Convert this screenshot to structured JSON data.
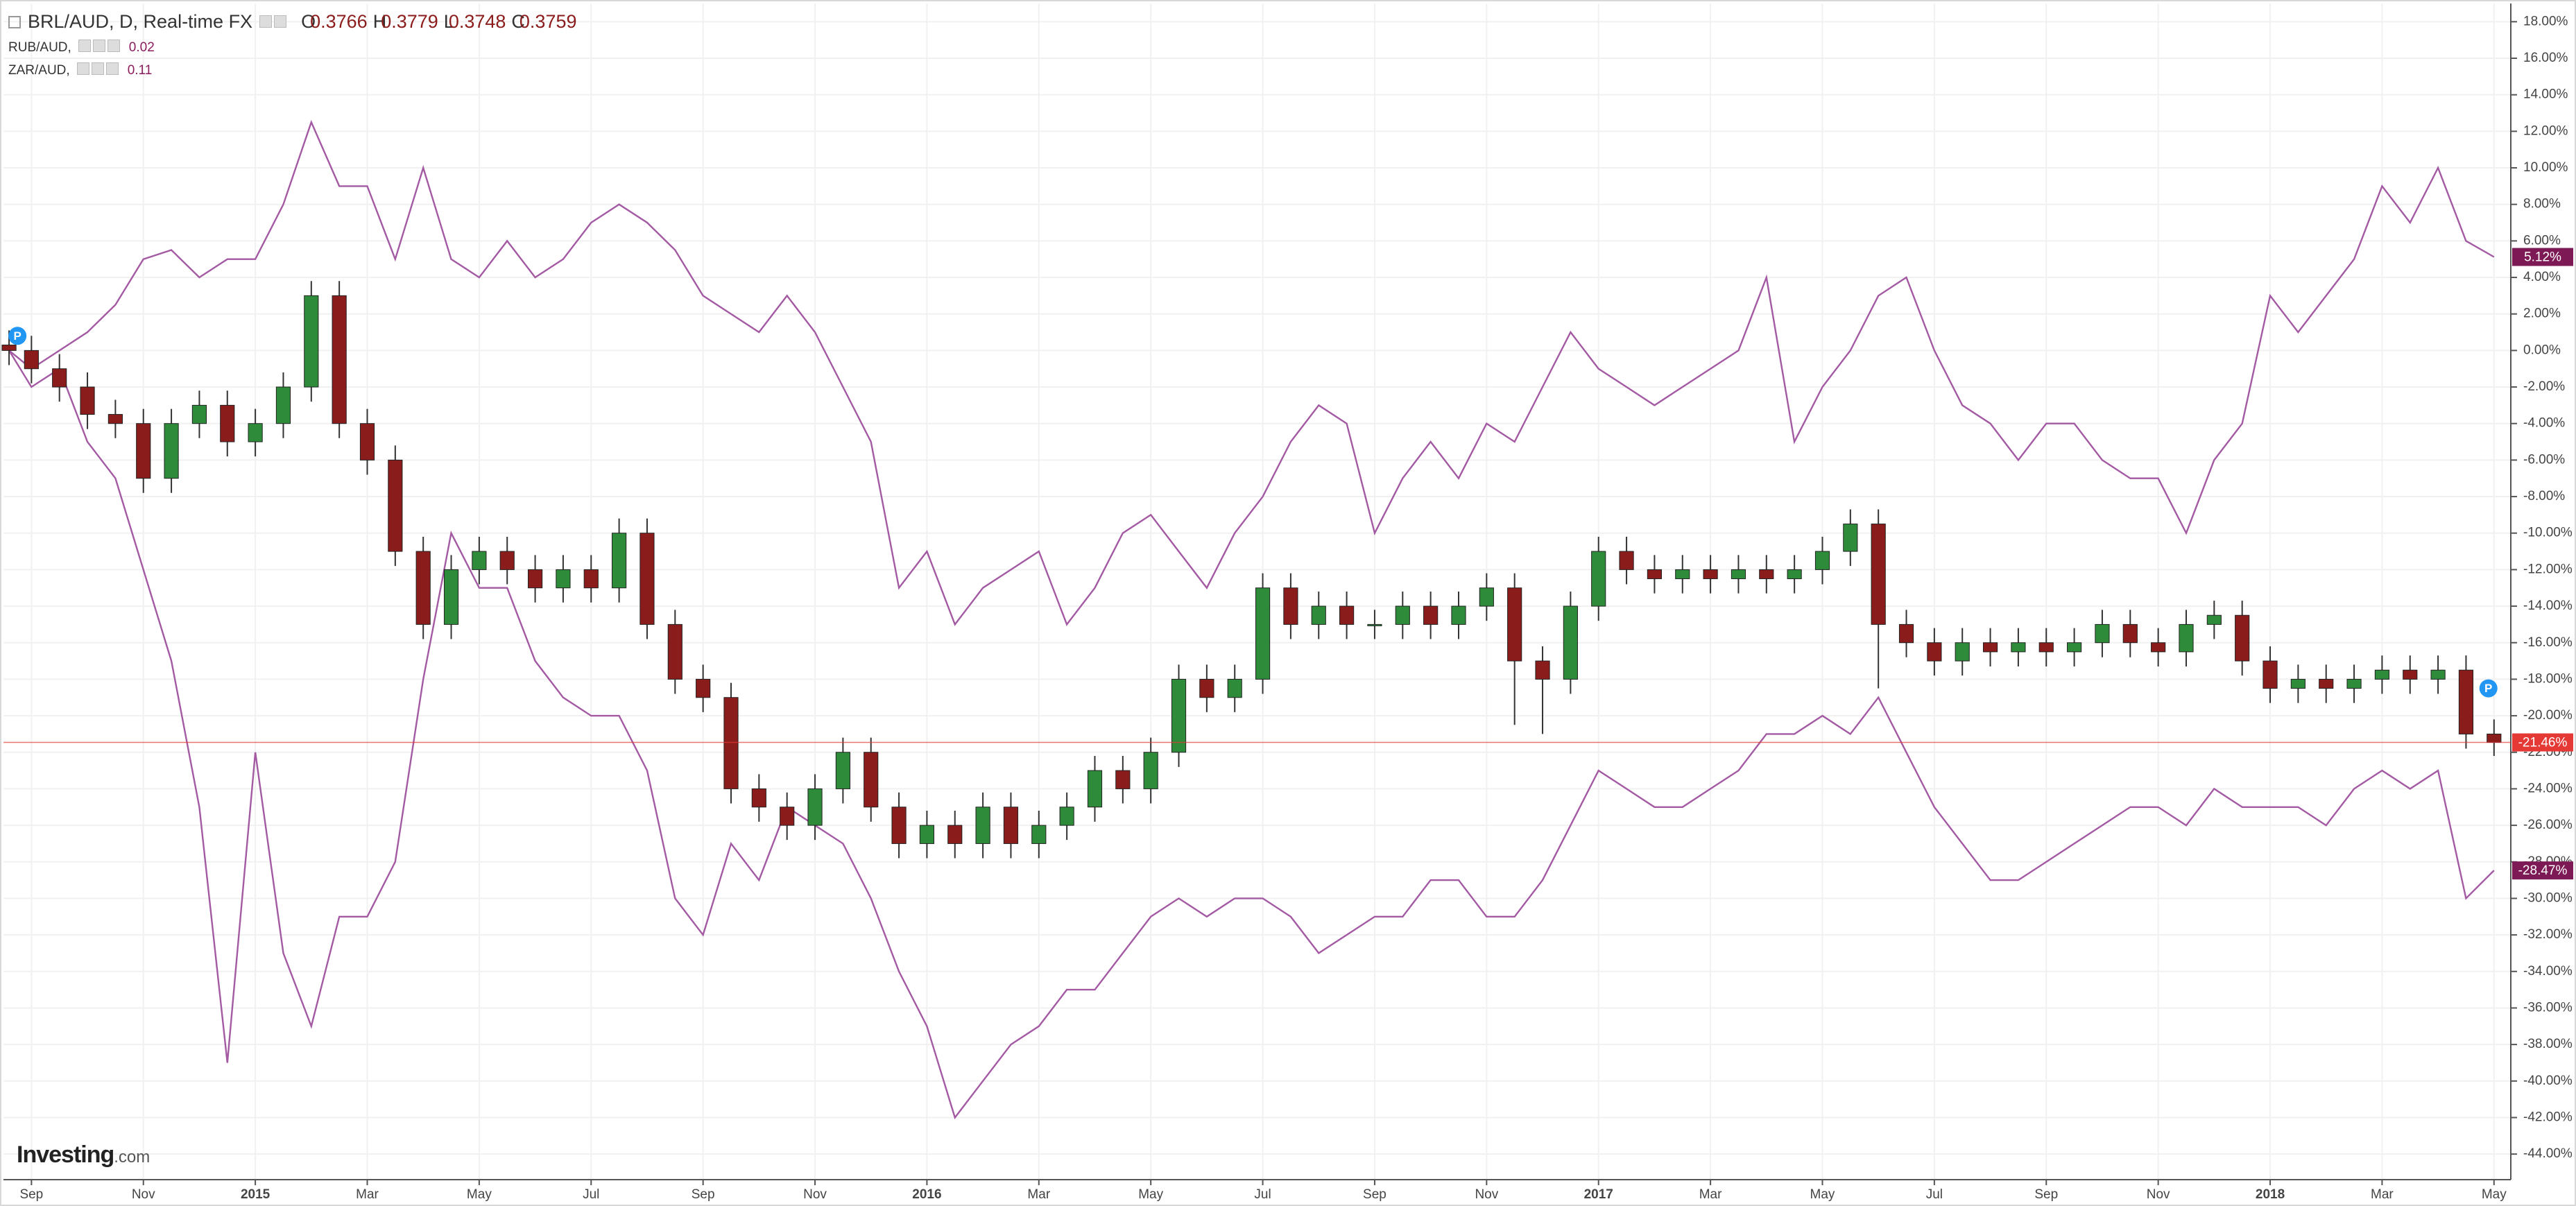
{
  "chart_data": {
    "type": "candlestick",
    "title": "BRL/AUD, D, Real-time FX",
    "ohlc_legend": [
      {
        "label": "O",
        "value": 0.3766
      },
      {
        "label": "H",
        "value": 0.3779
      },
      {
        "label": "L",
        "value": 0.3748
      },
      {
        "label": "C",
        "value": 0.3759
      }
    ],
    "x": [
      -0.4,
      0,
      0.5,
      1,
      1.5,
      2,
      2.5,
      3,
      3.5,
      4,
      4.5,
      5,
      5.5,
      6,
      6.5,
      7,
      7.5,
      8,
      8.5,
      9,
      9.5,
      10,
      10.5,
      11,
      11.5,
      12,
      12.5,
      13,
      13.5,
      14,
      14.5,
      15,
      15.5,
      16,
      16.5,
      17,
      17.5,
      18,
      18.5,
      19,
      19.5,
      20,
      20.5,
      21,
      21.5,
      22,
      22.5,
      23,
      23.5,
      24,
      24.5,
      25,
      25.5,
      26,
      26.5,
      27,
      27.5,
      28,
      28.5,
      29,
      29.5,
      30,
      30.5,
      31,
      31.5,
      32,
      32.5,
      33,
      33.5,
      34,
      34.5,
      35,
      35.5,
      36,
      36.5,
      37,
      37.5,
      38,
      38.5,
      39,
      39.5,
      40,
      40.5,
      41,
      41.5,
      42,
      42.5,
      43,
      43.5,
      44
    ],
    "open": [
      0.3,
      0,
      -1,
      -2,
      -3.5,
      -4,
      -7,
      -4,
      -3,
      -5,
      -4,
      -2,
      3,
      -4,
      -6,
      -11,
      -15,
      -12,
      -11,
      -12,
      -13,
      -12,
      -13,
      -10,
      -15,
      -18,
      -19,
      -24,
      -25,
      -26,
      -24,
      -22,
      -25,
      -27,
      -26,
      -27,
      -25,
      -27,
      -26,
      -25,
      -23,
      -24,
      -22,
      -18,
      -19,
      -18,
      -13,
      -15,
      -14,
      -15,
      -15,
      -14,
      -15,
      -14,
      -13,
      -17,
      -18,
      -14,
      -11,
      -12,
      -12.5,
      -12,
      -12.5,
      -12,
      -12.5,
      -12,
      -11,
      -9.5,
      -15,
      -16,
      -17,
      -16,
      -16.5,
      -16,
      -16.5,
      -16,
      -15,
      -16,
      -16.5,
      -15,
      -14.5,
      -17,
      -18.5,
      -18,
      -18.5,
      -18,
      -17.5,
      -18,
      -17.5,
      -21
    ],
    "high": [
      1.1,
      0.8,
      -0.2,
      -1.2,
      -2.7,
      -3.2,
      -3.2,
      -2.2,
      -2.2,
      -3.2,
      -1.2,
      3.8,
      3.8,
      -3.2,
      -5.2,
      -10.2,
      -11.2,
      -10.2,
      -10.2,
      -11.2,
      -11.2,
      -11.2,
      -9.2,
      -9.2,
      -14.2,
      -17.2,
      -18.2,
      -23.2,
      -24.2,
      -23.2,
      -21.2,
      -21.2,
      -24.2,
      -25.2,
      -25.2,
      -24.2,
      -24.2,
      -25.2,
      -24.2,
      -22.2,
      -22.2,
      -21.2,
      -17.2,
      -17.2,
      -17.2,
      -12.2,
      -12.2,
      -13.2,
      -13.2,
      -14.2,
      -13.2,
      -13.2,
      -13.2,
      -12.2,
      -12.2,
      -16.2,
      -13.2,
      -10.2,
      -10.2,
      -11.2,
      -11.2,
      -11.2,
      -11.2,
      -11.2,
      -11.2,
      -10.2,
      -8.7,
      -8.7,
      -14.2,
      -15.2,
      -15.2,
      -15.2,
      -15.2,
      -15.2,
      -15.2,
      -14.2,
      -14.2,
      -15.2,
      -14.2,
      -13.7,
      -13.7,
      -16.2,
      -17.2,
      -17.2,
      -17.2,
      -16.7,
      -16.7,
      -16.7,
      -16.7,
      -20.2
    ],
    "low": [
      -0.8,
      -1.8,
      -2.8,
      -4.3,
      -4.8,
      -7.8,
      -7.8,
      -4.8,
      -5.8,
      -5.8,
      -4.8,
      -2.8,
      -4.8,
      -6.8,
      -11.8,
      -15.8,
      -15.8,
      -12.8,
      -12.8,
      -13.8,
      -13.8,
      -13.8,
      -13.8,
      -15.8,
      -18.8,
      -19.8,
      -24.8,
      -25.8,
      -26.8,
      -26.8,
      -24.8,
      -25.8,
      -27.8,
      -27.8,
      -27.8,
      -27.8,
      -27.8,
      -27.8,
      -26.8,
      -25.8,
      -24.8,
      -24.8,
      -22.8,
      -19.8,
      -19.8,
      -18.8,
      -15.8,
      -15.8,
      -15.8,
      -15.8,
      -15.8,
      -15.8,
      -15.8,
      -14.8,
      -20.5,
      -21,
      -18.8,
      -14.8,
      -12.8,
      -13.3,
      -13.3,
      -13.3,
      -13.3,
      -13.3,
      -13.3,
      -12.8,
      -11.8,
      -18.5,
      -16.8,
      -17.8,
      -17.8,
      -17.3,
      -17.3,
      -17.3,
      -17.3,
      -16.8,
      -16.8,
      -17.3,
      -17.3,
      -15.8,
      -17.8,
      -19.3,
      -19.3,
      -19.3,
      -19.3,
      -18.8,
      -18.8,
      -18.8,
      -21.8,
      -22.2
    ],
    "close": [
      0,
      -1,
      -2,
      -3.5,
      -4,
      -7,
      -4,
      -3,
      -5,
      -4,
      -2,
      3,
      -4,
      -6,
      -11,
      -15,
      -12,
      -11,
      -12,
      -13,
      -12,
      -13,
      -10,
      -15,
      -18,
      -19,
      -24,
      -25,
      -26,
      -24,
      -22,
      -25,
      -27,
      -26,
      -27,
      -25,
      -27,
      -26,
      -25,
      -23,
      -24,
      -22,
      -18,
      -19,
      -18,
      -13,
      -15,
      -14,
      -15,
      -15,
      -14,
      -15,
      -14,
      -13,
      -17,
      -18,
      -14,
      -11,
      -12,
      -12.5,
      -12,
      -12.5,
      -12,
      -12.5,
      -12,
      -11,
      -9.5,
      -15,
      -16,
      -17,
      -16,
      -16.5,
      -16,
      -16.5,
      -16,
      -15,
      -16,
      -16.5,
      -15,
      -14.5,
      -17,
      -18.5,
      -18,
      -18.5,
      -18,
      -17.5,
      -18,
      -17.5,
      -21,
      -21.46
    ],
    "up_color": "#2e8b3a",
    "down_color": "#8b1c1c",
    "last_label": "-21.46%",
    "price_line_color": "#e53935",
    "compare": [
      {
        "name": "RUB/AUD,",
        "legend_value": 0.02,
        "color": "#a35aa3",
        "badge_color": "#7d1a55",
        "last_label": "-28.47%",
        "values": [
          0,
          -2,
          -1,
          -5,
          -7,
          -12,
          -17,
          -25,
          -39,
          -22,
          -33,
          -37,
          -31,
          -31,
          -28,
          -18,
          -10,
          -13,
          -13,
          -17,
          -19,
          -20,
          -20,
          -23,
          -30,
          -32,
          -27,
          -29,
          -25,
          -26,
          -27,
          -30,
          -34,
          -37,
          -42,
          -40,
          -38,
          -37,
          -35,
          -35,
          -33,
          -31,
          -30,
          -31,
          -30,
          -30,
          -31,
          -33,
          -32,
          -31,
          -31,
          -29,
          -29,
          -31,
          -31,
          -29,
          -26,
          -23,
          -24,
          -25,
          -25,
          -24,
          -23,
          -21,
          -21,
          -20,
          -21,
          -19,
          -22,
          -25,
          -27,
          -29,
          -29,
          -28,
          -27,
          -26,
          -25,
          -25,
          -26,
          -24,
          -25,
          -25,
          -25,
          -26,
          -24,
          -23,
          -24,
          -23,
          -30,
          -28.47
        ]
      },
      {
        "name": "ZAR/AUD,",
        "legend_value": 0.11,
        "color": "#a35aa3",
        "badge_color": "#7d1a55",
        "last_label": "5.12%",
        "values": [
          0,
          -1,
          0,
          1,
          2.5,
          5,
          5.5,
          4,
          5,
          5,
          8,
          12.5,
          9,
          9,
          5,
          10,
          5,
          4,
          6,
          4,
          5,
          7,
          8,
          7,
          5.5,
          3,
          2,
          1,
          3,
          1,
          -2,
          -5,
          -13,
          -11,
          -15,
          -13,
          -12,
          -11,
          -15,
          -13,
          -10,
          -9,
          -11,
          -13,
          -10,
          -8,
          -5,
          -3,
          -4,
          -10,
          -7,
          -5,
          -7,
          -4,
          -5,
          -2,
          1,
          -1,
          -2,
          -3,
          -2,
          -1,
          0,
          4,
          -5,
          -2,
          0,
          3,
          4,
          0,
          -3,
          -4,
          -6,
          -4,
          -4,
          -6,
          -7,
          -7,
          -10,
          -6,
          -4,
          3,
          1,
          3,
          5,
          9,
          7,
          10,
          6,
          5.12
        ]
      }
    ],
    "markers": [
      {
        "x": -0.25,
        "y": 0.8,
        "label": "P"
      },
      {
        "x": 43.9,
        "y": -18.5,
        "label": "P"
      }
    ],
    "xlim": [
      -0.5,
      44.3
    ],
    "xticks": [
      {
        "value": 0,
        "label": "Sep"
      },
      {
        "value": 2,
        "label": "Nov"
      },
      {
        "value": 4,
        "label": "2015"
      },
      {
        "value": 6,
        "label": "Mar"
      },
      {
        "value": 8,
        "label": "May"
      },
      {
        "value": 10,
        "label": "Jul"
      },
      {
        "value": 12,
        "label": "Sep"
      },
      {
        "value": 14,
        "label": "Nov"
      },
      {
        "value": 16,
        "label": "2016"
      },
      {
        "value": 18,
        "label": "Mar"
      },
      {
        "value": 20,
        "label": "May"
      },
      {
        "value": 22,
        "label": "Jul"
      },
      {
        "value": 24,
        "label": "Sep"
      },
      {
        "value": 26,
        "label": "Nov"
      },
      {
        "value": 28,
        "label": "2017"
      },
      {
        "value": 30,
        "label": "Mar"
      },
      {
        "value": 32,
        "label": "May"
      },
      {
        "value": 34,
        "label": "Jul"
      },
      {
        "value": 36,
        "label": "Sep"
      },
      {
        "value": 38,
        "label": "Nov"
      },
      {
        "value": 40,
        "label": "2018"
      },
      {
        "value": 42,
        "label": "Mar"
      },
      {
        "value": 44,
        "label": "May"
      }
    ],
    "ylim": [
      -45.4,
      19
    ],
    "yticks": [
      {
        "value": 18,
        "label": "18.00%"
      },
      {
        "value": 16,
        "label": "16.00%"
      },
      {
        "value": 14,
        "label": "14.00%"
      },
      {
        "value": 12,
        "label": "12.00%"
      },
      {
        "value": 10,
        "label": "10.00%"
      },
      {
        "value": 8,
        "label": "8.00%"
      },
      {
        "value": 6,
        "label": "6.00%"
      },
      {
        "value": 4,
        "label": "4.00%"
      },
      {
        "value": 2,
        "label": "2.00%"
      },
      {
        "value": 0,
        "label": "0.00%"
      },
      {
        "value": -2,
        "label": "-2.00%"
      },
      {
        "value": -4,
        "label": "-4.00%"
      },
      {
        "value": -6,
        "label": "-6.00%"
      },
      {
        "value": -8,
        "label": "-8.00%"
      },
      {
        "value": -10,
        "label": "-10.00%"
      },
      {
        "value": -12,
        "label": "-12.00%"
      },
      {
        "value": -14,
        "label": "-14.00%"
      },
      {
        "value": -16,
        "label": "-16.00%"
      },
      {
        "value": -18,
        "label": "-18.00%"
      },
      {
        "value": -20,
        "label": "-20.00%"
      },
      {
        "value": -22,
        "label": "-22.00%"
      },
      {
        "value": -24,
        "label": "-24.00%"
      },
      {
        "value": -26,
        "label": "-26.00%"
      },
      {
        "value": -28,
        "label": "-28.00%"
      },
      {
        "value": -30,
        "label": "-30.00%"
      },
      {
        "value": -32,
        "label": "-32.00%"
      },
      {
        "value": -34,
        "label": "-34.00%"
      },
      {
        "value": -36,
        "label": "-36.00%"
      },
      {
        "value": -38,
        "label": "-38.00%"
      },
      {
        "value": -40,
        "label": "-40.00%"
      },
      {
        "value": -42,
        "label": "-42.00%"
      },
      {
        "value": -44,
        "label": "-44.00%"
      }
    ],
    "grid": true
  },
  "logo": {
    "name": "Investing",
    "suffix": ".com"
  }
}
